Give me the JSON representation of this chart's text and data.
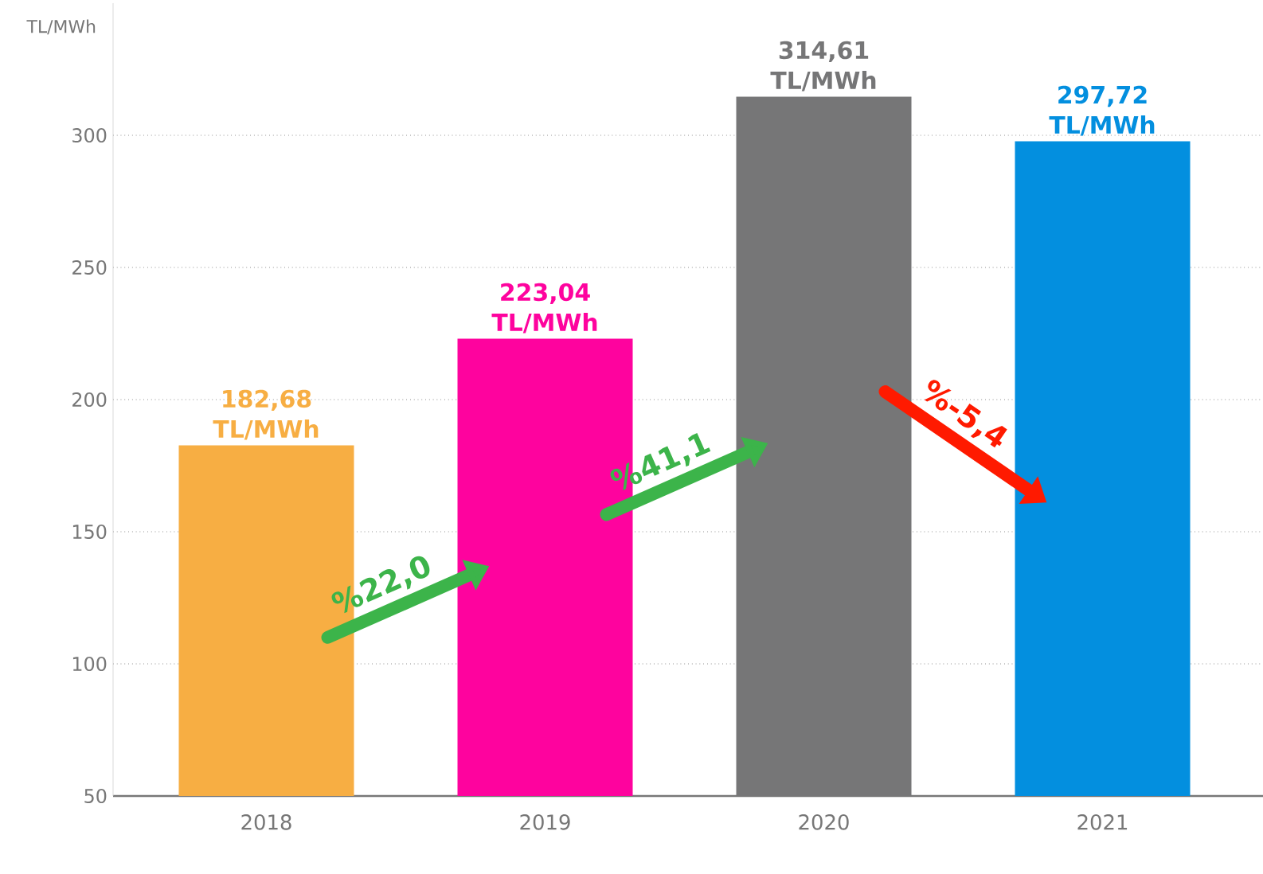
{
  "chart_data": {
    "type": "bar",
    "ylim": [
      50,
      350
    ],
    "categories": [
      "2018",
      "2019",
      "2020",
      "2021"
    ],
    "values": [
      182.68,
      223.04,
      314.61,
      297.72
    ],
    "colors": [
      "#f7ae43",
      "#fe039e",
      "#767677",
      "#038fdf"
    ],
    "value_labels": [
      "182,68 TL/MWh",
      "223,04 TL/MWh",
      "314,61 TL/MWh",
      "297,72 TL/MWh"
    ],
    "yticks": [
      50,
      100,
      150,
      200,
      250,
      300
    ],
    "grid": "y",
    "annotations": [
      "TL/MWh",
      "%22,0",
      "%41,1",
      "%-5,4"
    ]
  }
}
